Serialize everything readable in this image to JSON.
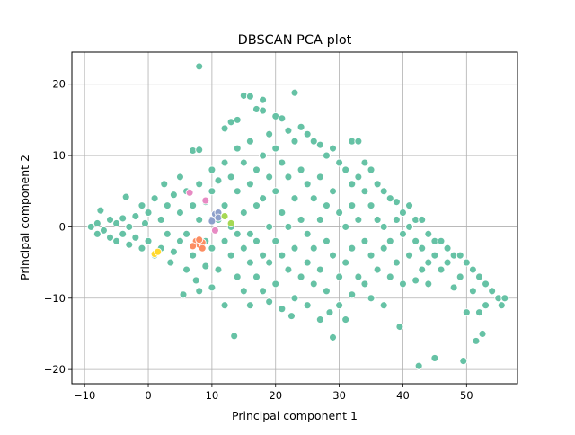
{
  "chart_data": {
    "type": "scatter",
    "title": "DBSCAN PCA plot",
    "xlabel": "Principal component 1",
    "ylabel": "Principal component 2",
    "xlim": [
      -12,
      58
    ],
    "ylim": [
      -22,
      24.5
    ],
    "xticks": [
      -10,
      0,
      10,
      20,
      30,
      40,
      50
    ],
    "yticks": [
      -20,
      -10,
      0,
      10,
      20
    ],
    "grid": true,
    "series": [
      {
        "color": "#66c2a5",
        "points": [
          [
            -9,
            0
          ],
          [
            -8,
            0.5
          ],
          [
            -7.5,
            2.3
          ],
          [
            -8,
            -1
          ],
          [
            -7,
            -0.5
          ],
          [
            -6,
            1
          ],
          [
            -6,
            -1.5
          ],
          [
            -5,
            0.5
          ],
          [
            -5,
            -2
          ],
          [
            -4,
            1.2
          ],
          [
            -4,
            -1
          ],
          [
            -3.5,
            4.2
          ],
          [
            -3,
            0
          ],
          [
            -3,
            -2.5
          ],
          [
            -2,
            1.5
          ],
          [
            -2,
            -1.5
          ],
          [
            -1,
            3
          ],
          [
            -1,
            -3
          ],
          [
            -0.5,
            0.5
          ],
          [
            0,
            2
          ],
          [
            0,
            -2
          ],
          [
            1,
            4
          ],
          [
            1,
            -4
          ],
          [
            2,
            1
          ],
          [
            2,
            -3
          ],
          [
            2.5,
            6
          ],
          [
            3,
            3
          ],
          [
            3,
            -1
          ],
          [
            3.5,
            -5
          ],
          [
            4,
            4.5
          ],
          [
            4,
            -3.5
          ],
          [
            5,
            7
          ],
          [
            5,
            2
          ],
          [
            5,
            -2
          ],
          [
            5.5,
            -9.5
          ],
          [
            6,
            5
          ],
          [
            6,
            -1
          ],
          [
            6,
            -6
          ],
          [
            7,
            10.7
          ],
          [
            7,
            3
          ],
          [
            7,
            -4
          ],
          [
            7.5,
            -7.5
          ],
          [
            8,
            22.5
          ],
          [
            8,
            10.8
          ],
          [
            8,
            6
          ],
          [
            8,
            1
          ],
          [
            8,
            -9
          ],
          [
            9,
            3.5
          ],
          [
            9,
            -2
          ],
          [
            9,
            -5.5
          ],
          [
            10,
            8
          ],
          [
            10,
            5
          ],
          [
            10,
            -3
          ],
          [
            10,
            -8.5
          ],
          [
            11,
            6.5
          ],
          [
            11,
            1
          ],
          [
            11,
            -6
          ],
          [
            12,
            13.8
          ],
          [
            12,
            9
          ],
          [
            12,
            3
          ],
          [
            12,
            -2
          ],
          [
            12,
            -11
          ],
          [
            13,
            14.7
          ],
          [
            13,
            7
          ],
          [
            13,
            0
          ],
          [
            13,
            -4
          ],
          [
            13.5,
            -15.3
          ],
          [
            14,
            15
          ],
          [
            14,
            11
          ],
          [
            14,
            5
          ],
          [
            14,
            -1
          ],
          [
            14,
            -7
          ],
          [
            15,
            18.4
          ],
          [
            15,
            9
          ],
          [
            15,
            2
          ],
          [
            15,
            -3
          ],
          [
            15,
            -9
          ],
          [
            16,
            18.3
          ],
          [
            16,
            12
          ],
          [
            16,
            6
          ],
          [
            16,
            -1
          ],
          [
            16,
            -5
          ],
          [
            16,
            -11
          ],
          [
            17,
            16.5
          ],
          [
            17,
            8
          ],
          [
            17,
            3
          ],
          [
            17,
            -2
          ],
          [
            17,
            -7
          ],
          [
            18,
            17.8
          ],
          [
            18,
            16.3
          ],
          [
            18,
            10
          ],
          [
            18,
            4
          ],
          [
            18,
            -4
          ],
          [
            18,
            -9
          ],
          [
            19,
            13
          ],
          [
            19,
            7
          ],
          [
            19,
            0
          ],
          [
            19,
            -5
          ],
          [
            19,
            -10.5
          ],
          [
            20,
            15.5
          ],
          [
            20,
            11
          ],
          [
            20,
            5
          ],
          [
            20,
            -2
          ],
          [
            20,
            -8
          ],
          [
            21,
            15.2
          ],
          [
            21,
            9
          ],
          [
            21,
            2
          ],
          [
            21,
            -4
          ],
          [
            21,
            -11.5
          ],
          [
            22,
            13.5
          ],
          [
            22,
            7
          ],
          [
            22,
            0
          ],
          [
            22,
            -6
          ],
          [
            22.5,
            -12.5
          ],
          [
            23,
            18.8
          ],
          [
            23,
            12
          ],
          [
            23,
            4
          ],
          [
            23,
            -3
          ],
          [
            23,
            -10
          ],
          [
            24,
            14
          ],
          [
            24,
            8
          ],
          [
            24,
            1
          ],
          [
            24,
            -7
          ],
          [
            25,
            13
          ],
          [
            25,
            6
          ],
          [
            25,
            -1
          ],
          [
            25,
            -5
          ],
          [
            25,
            -11
          ],
          [
            26,
            12
          ],
          [
            26,
            4
          ],
          [
            26,
            -3
          ],
          [
            26,
            -8
          ],
          [
            27,
            11.5
          ],
          [
            27,
            7
          ],
          [
            27,
            1
          ],
          [
            27,
            -6
          ],
          [
            27,
            -13
          ],
          [
            28,
            10
          ],
          [
            28,
            3
          ],
          [
            28,
            -2
          ],
          [
            28,
            -9
          ],
          [
            28.5,
            -12
          ],
          [
            29,
            11
          ],
          [
            29,
            5
          ],
          [
            29,
            -4
          ],
          [
            29,
            -15.5
          ],
          [
            30,
            9
          ],
          [
            30,
            2
          ],
          [
            30,
            -7
          ],
          [
            30,
            -11
          ],
          [
            31,
            8
          ],
          [
            31,
            0
          ],
          [
            31,
            -5
          ],
          [
            31,
            -13
          ],
          [
            32,
            12
          ],
          [
            32,
            6
          ],
          [
            32,
            3
          ],
          [
            32,
            -3
          ],
          [
            32,
            -9.5
          ],
          [
            33,
            12
          ],
          [
            33,
            7
          ],
          [
            33,
            1
          ],
          [
            33,
            -7
          ],
          [
            34,
            9
          ],
          [
            34,
            5
          ],
          [
            34,
            -2
          ],
          [
            34,
            -8
          ],
          [
            35,
            8
          ],
          [
            35,
            3
          ],
          [
            35,
            -4
          ],
          [
            35,
            -10
          ],
          [
            36,
            6
          ],
          [
            36,
            1
          ],
          [
            36,
            -6
          ],
          [
            37,
            5
          ],
          [
            37,
            0
          ],
          [
            37,
            -3
          ],
          [
            37,
            -11
          ],
          [
            38,
            4
          ],
          [
            38,
            -2
          ],
          [
            38,
            -7
          ],
          [
            39,
            3.5
          ],
          [
            39,
            1
          ],
          [
            39,
            -5
          ],
          [
            39.5,
            -14
          ],
          [
            40,
            2
          ],
          [
            40,
            -1
          ],
          [
            40,
            -8
          ],
          [
            41,
            3
          ],
          [
            41,
            0
          ],
          [
            41,
            -4
          ],
          [
            42,
            1
          ],
          [
            42,
            -2
          ],
          [
            42,
            -7.5
          ],
          [
            42.5,
            -19.5
          ],
          [
            43,
            1
          ],
          [
            43,
            -3
          ],
          [
            43,
            -6
          ],
          [
            44,
            -1
          ],
          [
            44,
            -5
          ],
          [
            44,
            -8
          ],
          [
            45,
            -2
          ],
          [
            45,
            -4
          ],
          [
            45,
            -18.4
          ],
          [
            46,
            -2
          ],
          [
            46,
            -6
          ],
          [
            47,
            -3
          ],
          [
            47,
            -5
          ],
          [
            48,
            -4
          ],
          [
            48,
            -8.5
          ],
          [
            49,
            -4
          ],
          [
            49,
            -7
          ],
          [
            49.5,
            -18.8
          ],
          [
            50,
            -5
          ],
          [
            50,
            -12
          ],
          [
            51,
            -6
          ],
          [
            51,
            -9
          ],
          [
            51.5,
            -16
          ],
          [
            52,
            -7
          ],
          [
            52,
            -12
          ],
          [
            52.5,
            -15
          ],
          [
            53,
            -8
          ],
          [
            53,
            -11
          ],
          [
            54,
            -9
          ],
          [
            55,
            -10
          ],
          [
            56,
            -10
          ],
          [
            55.5,
            -11
          ]
        ]
      },
      {
        "color": "#fc8d62",
        "points": [
          [
            7.5,
            -2
          ],
          [
            8,
            -2.5
          ],
          [
            8.5,
            -2.2
          ],
          [
            7,
            -2.7
          ],
          [
            8,
            -1.8
          ],
          [
            8.5,
            -3
          ]
        ]
      },
      {
        "color": "#8da0cb",
        "points": [
          [
            10,
            1
          ],
          [
            10.5,
            1.8
          ],
          [
            11,
            2
          ],
          [
            10,
            0.8
          ],
          [
            11,
            1.3
          ]
        ]
      },
      {
        "color": "#e78ac3",
        "points": [
          [
            9,
            3.7
          ],
          [
            6.5,
            4.8
          ],
          [
            10.5,
            -0.5
          ]
        ]
      },
      {
        "color": "#ffd92f",
        "points": [
          [
            1,
            -3.8
          ],
          [
            1.5,
            -3.5
          ]
        ]
      },
      {
        "color": "#a6d854",
        "points": [
          [
            12,
            1.5
          ],
          [
            13,
            0.5
          ]
        ]
      }
    ]
  }
}
